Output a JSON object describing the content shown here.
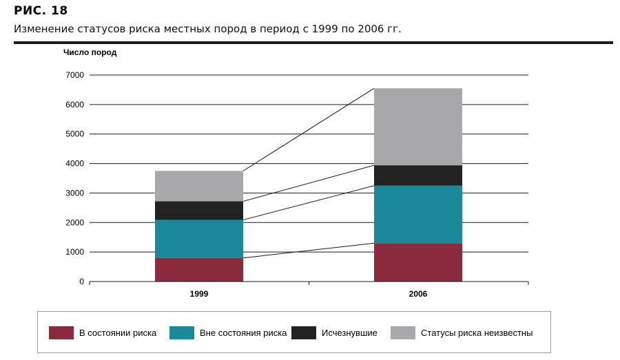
{
  "header": {
    "figure_label": "РИС.  18",
    "title": "Изменение статусов риска местных пород в период с 1999 по 2006 гг."
  },
  "chart_data": {
    "type": "bar",
    "stacked": true,
    "categories": [
      "1999",
      "2006"
    ],
    "series": [
      {
        "name": "В состоянии риска",
        "color": "#8b2a3c",
        "values": [
          800,
          1300
        ]
      },
      {
        "name": "Вне состояния риска",
        "color": "#1a8a9a",
        "values": [
          1290,
          1950
        ]
      },
      {
        "name": "Исчезнувшие",
        "color": "#222222",
        "values": [
          630,
          690
        ]
      },
      {
        "name": "Статусы риска неизвестны",
        "color": "#a8a8aa",
        "values": [
          1030,
          2610
        ]
      }
    ],
    "ylabel": "Число пород",
    "xlabel": "",
    "ylim": [
      0,
      7000
    ],
    "yticks": [
      0,
      1000,
      2000,
      3000,
      4000,
      5000,
      6000,
      7000
    ],
    "grid": true,
    "connector_lines": true,
    "legend_position": "bottom"
  }
}
